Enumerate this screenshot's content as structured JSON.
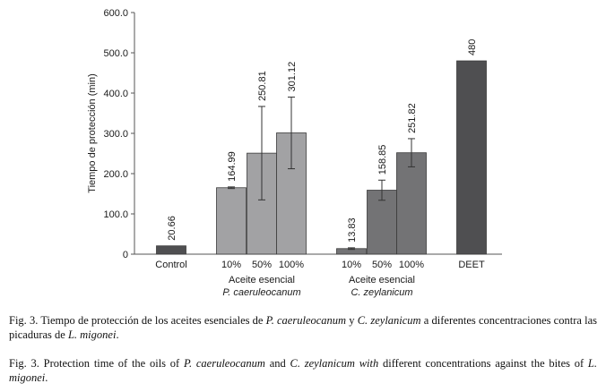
{
  "chart_data": {
    "type": "bar",
    "ylabel": "Tiempo de protección (min)",
    "ylim": [
      0,
      600
    ],
    "yticks": [
      "0",
      "100.0",
      "200.0",
      "300.0",
      "400.0",
      "500.0",
      "600.0"
    ],
    "grid": false,
    "bars": [
      {
        "label": "Control",
        "value": 20.66,
        "value_label": "20.66",
        "color": "#4f4f51",
        "error": null
      },
      {
        "label": "10%",
        "value": 164.99,
        "value_label": "164.99",
        "color": "#a2a2a4",
        "error": 2
      },
      {
        "label": "50%",
        "value": 250.81,
        "value_label": "250.81",
        "color": "#a2a2a4",
        "error": 116
      },
      {
        "label": "100%",
        "value": 301.12,
        "value_label": "301.12",
        "color": "#a2a2a4",
        "error": 89
      },
      {
        "label": "10%",
        "value": 13.83,
        "value_label": "13.83",
        "color": "#737375",
        "error": 2
      },
      {
        "label": "50%",
        "value": 158.85,
        "value_label": "158.85",
        "color": "#737375",
        "error": 25
      },
      {
        "label": "100%",
        "value": 251.82,
        "value_label": "251.82",
        "color": "#737375",
        "error": 35
      },
      {
        "label": "DEET",
        "value": 480,
        "value_label": "480",
        "color": "#4f4f51",
        "error": null
      }
    ],
    "groups": [
      {
        "line1": "Aceite esencial",
        "line2": "P. caeruleocanum"
      },
      {
        "line1": "Aceite esencial",
        "line2": "C. zeylanicum"
      }
    ]
  },
  "captions": {
    "es": {
      "a": "Fig. 3. Tiempo de protección de los aceites esenciales de ",
      "b": "P. caeruleocanum",
      "c": " y ",
      "d": "C. zeylanicum",
      "e": " a diferentes concentraciones contra las picaduras de ",
      "f": "L. migonei",
      "g": "."
    },
    "en": {
      "a": "Fig. 3. Protection time of the oils of ",
      "b": "P. caeruleocanum",
      "c": " and ",
      "d": "C. zeylanicum with",
      "e": " different concentrations against the bites of ",
      "f": "L. migonei",
      "g": "."
    }
  }
}
